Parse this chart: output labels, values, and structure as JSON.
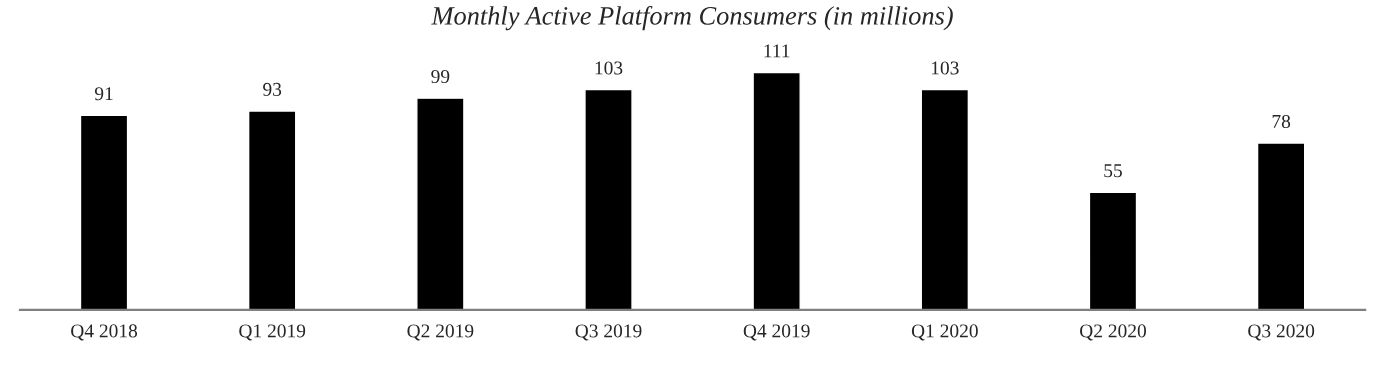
{
  "chart_data": {
    "type": "bar",
    "title": "Monthly Active Platform Consumers (in millions)",
    "categories": [
      "Q4 2018",
      "Q1 2019",
      "Q2 2019",
      "Q3 2019",
      "Q4 2019",
      "Q1 2020",
      "Q2 2020",
      "Q3 2020"
    ],
    "values": [
      91,
      93,
      99,
      103,
      111,
      103,
      55,
      78
    ],
    "color": "#000000",
    "data_labels": true,
    "grid": false,
    "legend": false
  }
}
